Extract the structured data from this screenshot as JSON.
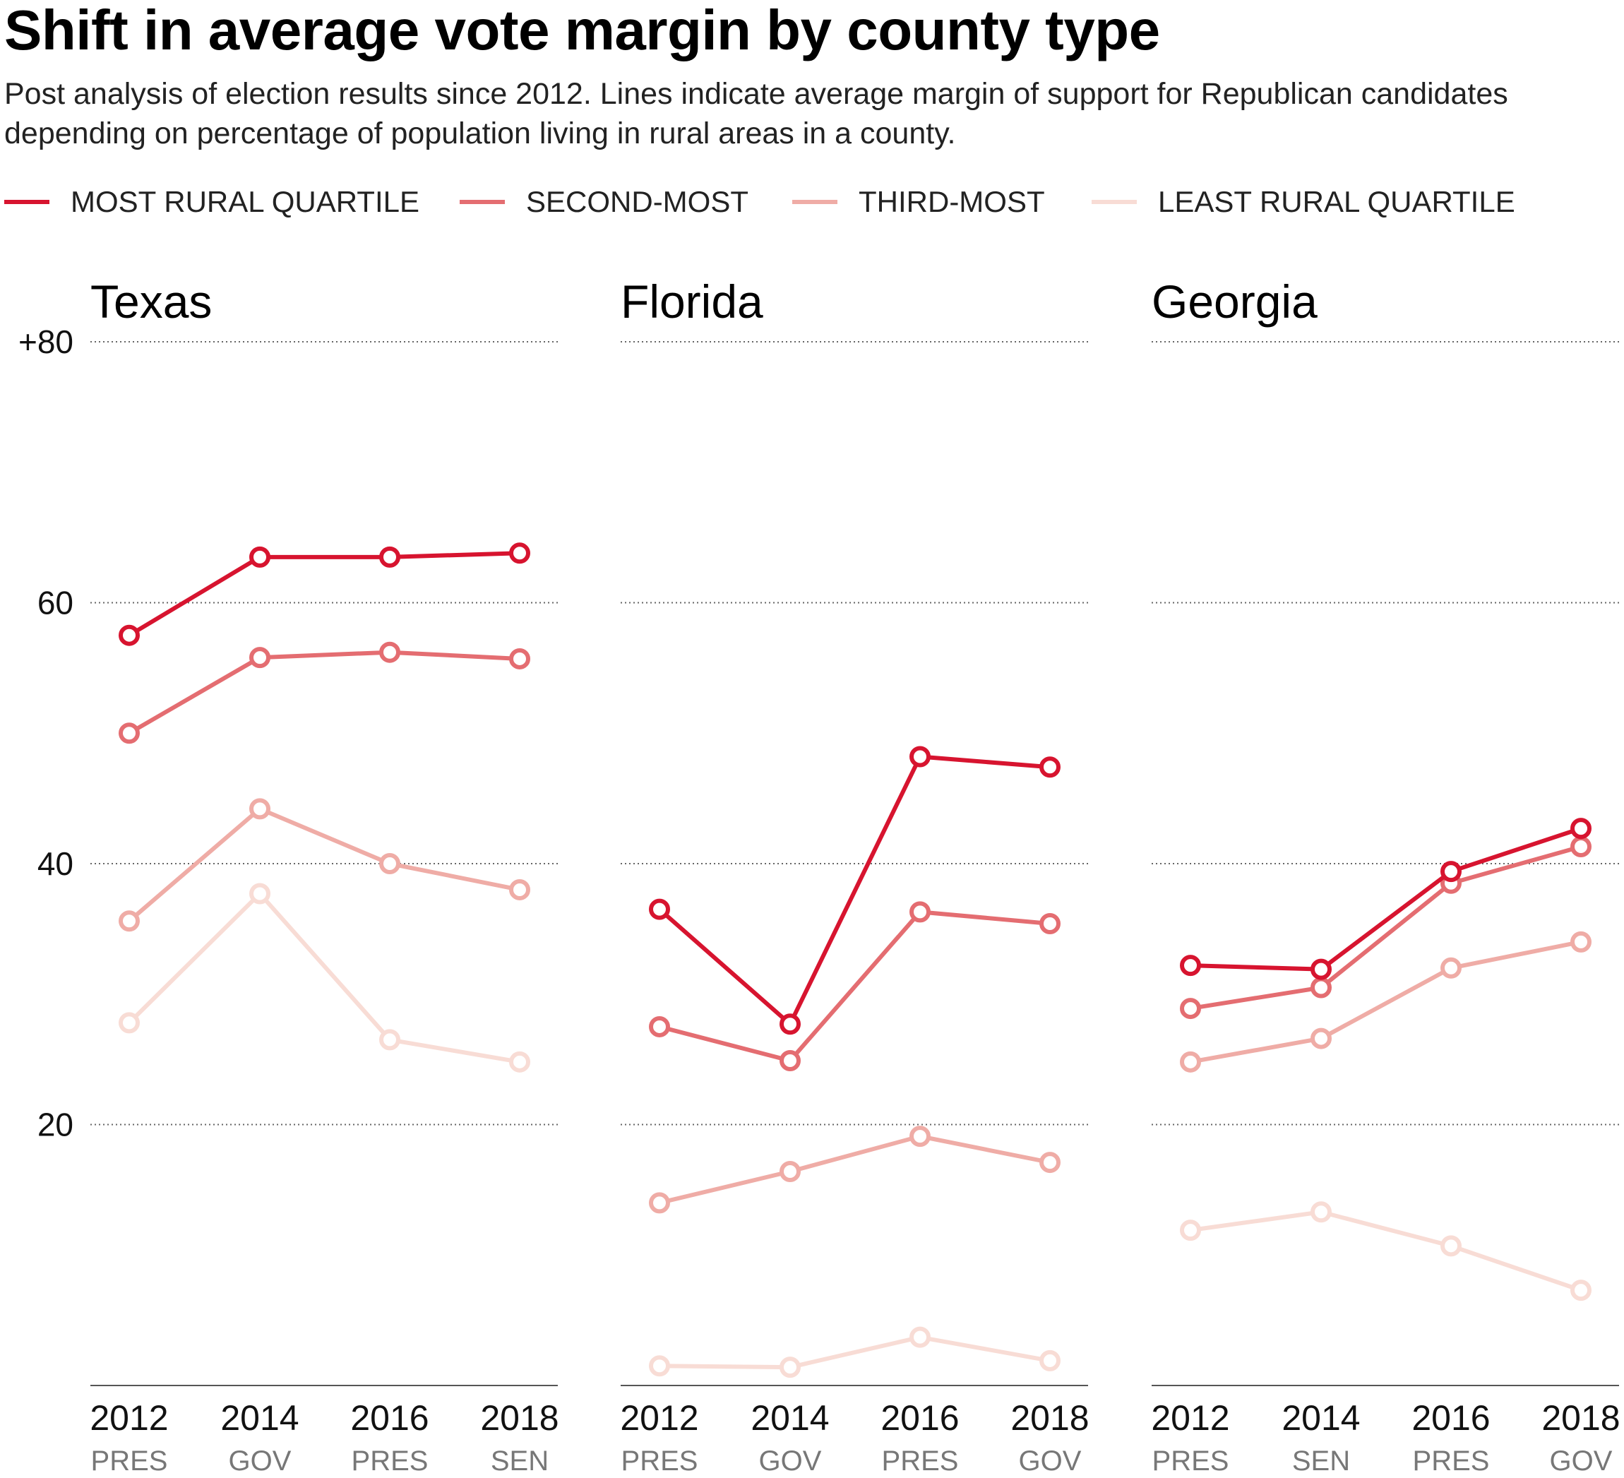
{
  "header": {
    "title": "Shift in average vote margin by county type",
    "subtitle": "Post analysis of election results since 2012. Lines indicate average margin of support for Republican candidates depending on percentage of population living in rural areas in a county."
  },
  "legend": [
    {
      "label": "MOST RURAL QUARTILE",
      "color": "#d7142f"
    },
    {
      "label": "SECOND-MOST",
      "color": "#e46d71"
    },
    {
      "label": "THIRD-MOST",
      "color": "#efaca6"
    },
    {
      "label": "LEAST RURAL QUARTILE",
      "color": "#f8dcd5"
    }
  ],
  "chart_data": [
    {
      "type": "line",
      "title": "Texas",
      "x": [
        "2012",
        "2014",
        "2016",
        "2018"
      ],
      "x_sublabels": [
        "PRES",
        "GOV",
        "PRES",
        "SEN"
      ],
      "ylim": [
        0,
        80
      ],
      "yticks": [
        20,
        40,
        60,
        80
      ],
      "ytick_labels": [
        "20",
        "40",
        "60",
        "+80"
      ],
      "grid": true,
      "series": [
        {
          "name": "MOST RURAL QUARTILE",
          "color": "#d7142f",
          "values": [
            57.5,
            63.5,
            63.5,
            63.8
          ]
        },
        {
          "name": "SECOND-MOST",
          "color": "#e46d71",
          "values": [
            50.0,
            55.8,
            56.2,
            55.7
          ]
        },
        {
          "name": "THIRD-MOST",
          "color": "#efaca6",
          "values": [
            35.6,
            44.2,
            40.0,
            38.0
          ]
        },
        {
          "name": "LEAST RURAL QUARTILE",
          "color": "#f8dcd5",
          "values": [
            27.8,
            37.7,
            26.5,
            24.8
          ]
        }
      ]
    },
    {
      "type": "line",
      "title": "Florida",
      "x": [
        "2012",
        "2014",
        "2016",
        "2018"
      ],
      "x_sublabels": [
        "PRES",
        "GOV",
        "PRES",
        "GOV"
      ],
      "ylim": [
        0,
        80
      ],
      "yticks": [
        20,
        40,
        60,
        80
      ],
      "ytick_labels": [
        "20",
        "40",
        "60",
        "+80"
      ],
      "grid": true,
      "series": [
        {
          "name": "MOST RURAL QUARTILE",
          "color": "#d7142f",
          "values": [
            36.5,
            27.7,
            48.2,
            47.4
          ]
        },
        {
          "name": "SECOND-MOST",
          "color": "#e46d71",
          "values": [
            27.5,
            24.9,
            36.3,
            35.4
          ]
        },
        {
          "name": "THIRD-MOST",
          "color": "#efaca6",
          "values": [
            14.0,
            16.4,
            19.1,
            17.1
          ]
        },
        {
          "name": "LEAST RURAL QUARTILE",
          "color": "#f8dcd5",
          "values": [
            1.5,
            1.4,
            3.7,
            1.9
          ]
        }
      ]
    },
    {
      "type": "line",
      "title": "Georgia",
      "x": [
        "2012",
        "2014",
        "2016",
        "2018"
      ],
      "x_sublabels": [
        "PRES",
        "SEN",
        "PRES",
        "GOV"
      ],
      "ylim": [
        0,
        80
      ],
      "yticks": [
        20,
        40,
        60,
        80
      ],
      "ytick_labels": [
        "20",
        "40",
        "60",
        "+80"
      ],
      "grid": true,
      "series": [
        {
          "name": "MOST RURAL QUARTILE",
          "color": "#d7142f",
          "values": [
            32.2,
            31.9,
            39.4,
            42.7
          ]
        },
        {
          "name": "SECOND-MOST",
          "color": "#e46d71",
          "values": [
            28.9,
            30.5,
            38.5,
            41.3
          ]
        },
        {
          "name": "THIRD-MOST",
          "color": "#efaca6",
          "values": [
            24.8,
            26.6,
            32.0,
            34.0
          ]
        },
        {
          "name": "LEAST RURAL QUARTILE",
          "color": "#f8dcd5",
          "values": [
            11.9,
            13.3,
            10.7,
            7.3
          ]
        }
      ]
    }
  ]
}
